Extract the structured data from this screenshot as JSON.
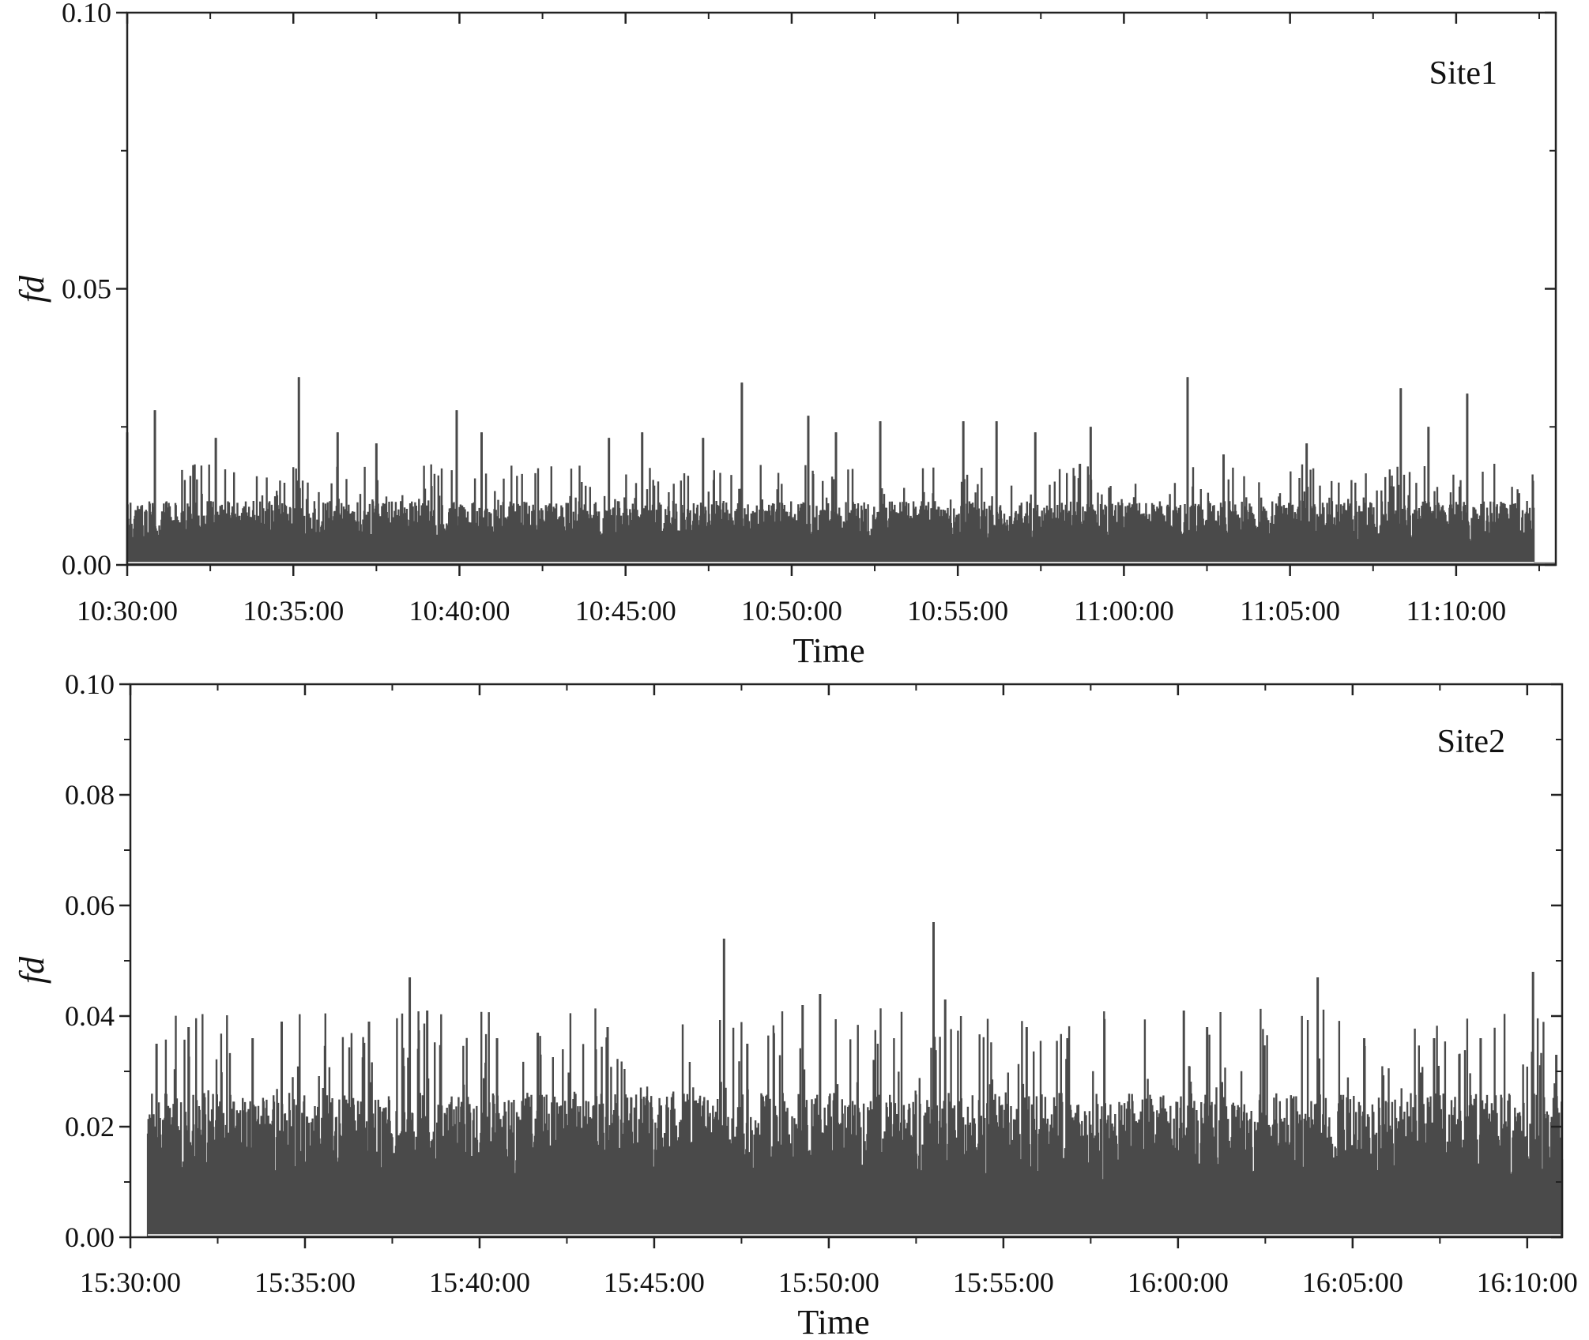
{
  "colors": {
    "bars": "#4a4a4a",
    "axis": "#222222",
    "baseline": "#d8d8d8"
  },
  "chart_data": [
    {
      "type": "bar",
      "panel_label": "Site1",
      "xlabel": "Time",
      "ylabel": "fd",
      "ylim": [
        0,
        0.1
      ],
      "y_ticks": [
        "0.00",
        "0.05",
        "0.10"
      ],
      "x_ticks": [
        "10:30:00",
        "10:35:00",
        "10:40:00",
        "10:45:00",
        "10:50:00",
        "10:55:00",
        "11:00:00",
        "11:05:00",
        "11:10:00"
      ],
      "x_range": [
        "10:30:00",
        "11:13:00"
      ],
      "data_end": "11:12:20",
      "baseline": 0.008,
      "peaks": [
        {
          "t": "10:30:00",
          "v": 0.024
        },
        {
          "t": "10:30:50",
          "v": 0.028
        },
        {
          "t": "10:32:40",
          "v": 0.023
        },
        {
          "t": "10:35:10",
          "v": 0.034
        },
        {
          "t": "10:36:20",
          "v": 0.024
        },
        {
          "t": "10:37:30",
          "v": 0.022
        },
        {
          "t": "10:39:55",
          "v": 0.028
        },
        {
          "t": "10:40:40",
          "v": 0.024
        },
        {
          "t": "10:44:30",
          "v": 0.023
        },
        {
          "t": "10:45:30",
          "v": 0.024
        },
        {
          "t": "10:47:20",
          "v": 0.023
        },
        {
          "t": "10:48:30",
          "v": 0.033
        },
        {
          "t": "10:50:30",
          "v": 0.027
        },
        {
          "t": "10:51:20",
          "v": 0.024
        },
        {
          "t": "10:52:40",
          "v": 0.026
        },
        {
          "t": "10:55:10",
          "v": 0.026
        },
        {
          "t": "10:56:10",
          "v": 0.026
        },
        {
          "t": "10:57:20",
          "v": 0.024
        },
        {
          "t": "10:59:00",
          "v": 0.025
        },
        {
          "t": "11:01:55",
          "v": 0.034
        },
        {
          "t": "11:03:00",
          "v": 0.02
        },
        {
          "t": "11:05:30",
          "v": 0.022
        },
        {
          "t": "11:08:20",
          "v": 0.032
        },
        {
          "t": "11:09:10",
          "v": 0.025
        },
        {
          "t": "11:10:20",
          "v": 0.031
        }
      ]
    },
    {
      "type": "bar",
      "panel_label": "Site2",
      "xlabel": "Time",
      "ylabel": "fd",
      "ylim": [
        0,
        0.1
      ],
      "y_ticks": [
        "0.00",
        "0.02",
        "0.04",
        "0.06",
        "0.08",
        "0.10"
      ],
      "x_ticks": [
        "15:30:00",
        "15:35:00",
        "15:40:00",
        "15:45:00",
        "15:50:00",
        "15:55:00",
        "16:00:00",
        "16:05:00",
        "16:10:00"
      ],
      "x_range": [
        "15:30:00",
        "16:11:00"
      ],
      "data_start": "15:30:30",
      "baseline": 0.018,
      "peaks": [
        {
          "t": "15:30:45",
          "v": 0.035
        },
        {
          "t": "15:31:40",
          "v": 0.038
        },
        {
          "t": "15:33:30",
          "v": 0.036
        },
        {
          "t": "15:34:20",
          "v": 0.039
        },
        {
          "t": "15:36:50",
          "v": 0.039
        },
        {
          "t": "15:38:00",
          "v": 0.047
        },
        {
          "t": "15:38:30",
          "v": 0.041
        },
        {
          "t": "15:40:30",
          "v": 0.036
        },
        {
          "t": "15:41:40",
          "v": 0.037
        },
        {
          "t": "15:43:40",
          "v": 0.038
        },
        {
          "t": "15:47:00",
          "v": 0.054
        },
        {
          "t": "15:47:40",
          "v": 0.035
        },
        {
          "t": "15:49:15",
          "v": 0.042
        },
        {
          "t": "15:49:45",
          "v": 0.044
        },
        {
          "t": "15:53:00",
          "v": 0.057
        },
        {
          "t": "15:53:20",
          "v": 0.043
        },
        {
          "t": "15:55:40",
          "v": 0.038
        },
        {
          "t": "15:56:50",
          "v": 0.036
        },
        {
          "t": "16:00:10",
          "v": 0.041
        },
        {
          "t": "16:00:50",
          "v": 0.038
        },
        {
          "t": "16:04:00",
          "v": 0.047
        },
        {
          "t": "16:05:20",
          "v": 0.036
        },
        {
          "t": "16:07:20",
          "v": 0.036
        },
        {
          "t": "16:08:40",
          "v": 0.036
        },
        {
          "t": "16:10:10",
          "v": 0.048
        },
        {
          "t": "16:10:50",
          "v": 0.033
        }
      ]
    }
  ]
}
